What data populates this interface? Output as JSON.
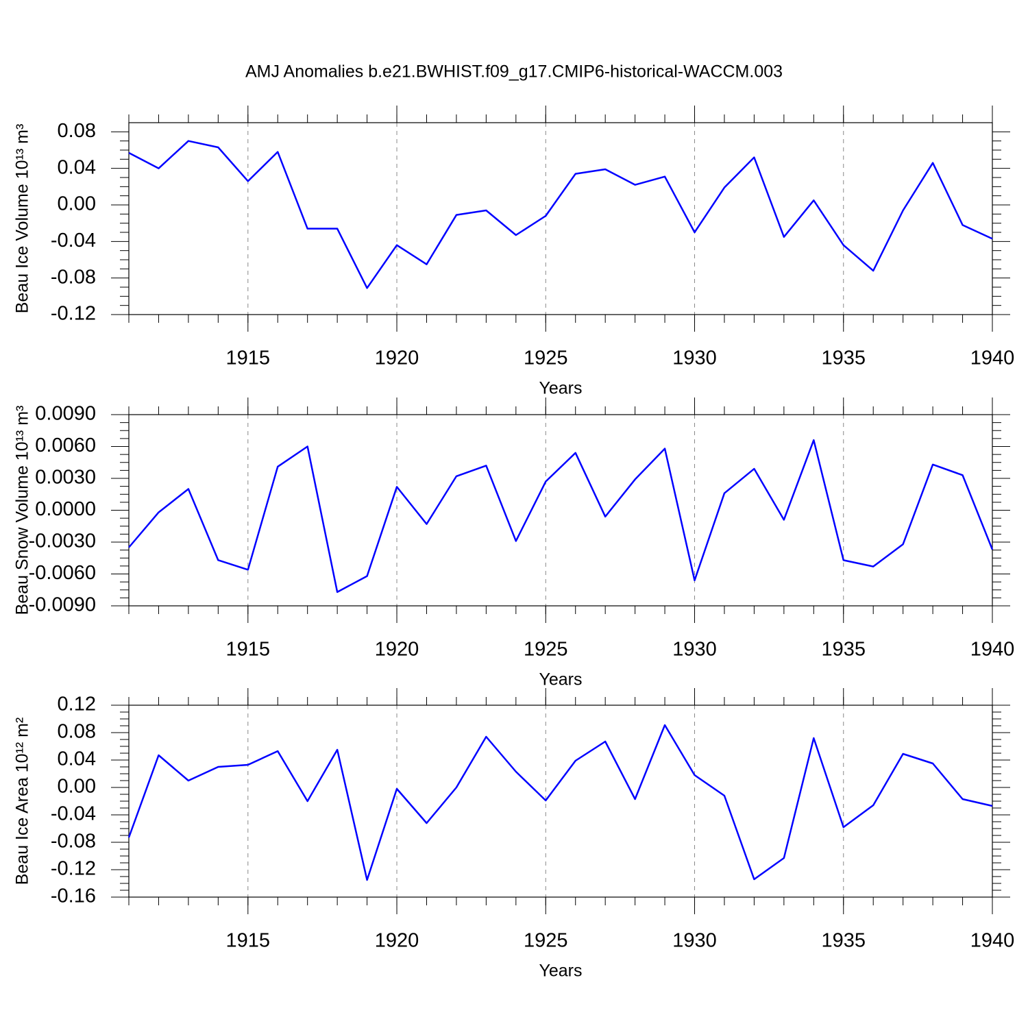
{
  "title": "AMJ Anomalies b.e21.BWHIST.f09_g17.CMIP6-historical-WACCM.003",
  "chart_data": [
    {
      "type": "line",
      "xlabel": "Years",
      "ylabel": "Beau Ice Volume 10¹³ m³",
      "x": [
        1911,
        1912,
        1913,
        1914,
        1915,
        1916,
        1917,
        1918,
        1919,
        1920,
        1921,
        1922,
        1923,
        1924,
        1925,
        1926,
        1927,
        1928,
        1929,
        1930,
        1931,
        1932,
        1933,
        1934,
        1935,
        1936,
        1937,
        1938,
        1939,
        1940
      ],
      "series": [
        {
          "color": "#0000ff",
          "values": [
            0.057,
            0.04,
            0.07,
            0.063,
            0.026,
            0.058,
            -0.026,
            -0.026,
            -0.091,
            -0.044,
            -0.065,
            -0.011,
            -0.006,
            -0.033,
            -0.012,
            0.034,
            0.039,
            0.022,
            0.031,
            -0.03,
            0.019,
            0.052,
            -0.035,
            0.005,
            -0.044,
            -0.072,
            -0.006,
            0.046,
            -0.022,
            -0.037
          ]
        }
      ],
      "xlim": [
        1911,
        1940
      ],
      "xticks": [
        1915,
        1920,
        1925,
        1930,
        1935,
        1940
      ],
      "ylim": [
        -0.12,
        0.09
      ],
      "yticks": [
        -0.12,
        -0.08,
        -0.04,
        {
          "value": 0,
          "label": "0.00"
        },
        0.04,
        0.08
      ],
      "xgrid": true
    },
    {
      "type": "line",
      "xlabel": "Years",
      "ylabel": "Beau Snow Volume 10¹³ m³",
      "x": [
        1911,
        1912,
        1913,
        1914,
        1915,
        1916,
        1917,
        1918,
        1919,
        1920,
        1921,
        1922,
        1923,
        1924,
        1925,
        1926,
        1927,
        1928,
        1929,
        1930,
        1931,
        1932,
        1933,
        1934,
        1935,
        1936,
        1937,
        1938,
        1939,
        1940
      ],
      "series": [
        {
          "color": "#0000ff",
          "values": [
            -0.0035,
            -0.0002,
            0.002,
            -0.0047,
            -0.0056,
            0.0041,
            0.006,
            -0.0077,
            -0.0062,
            0.0022,
            -0.0013,
            0.0032,
            0.0042,
            -0.0029,
            0.0027,
            0.0054,
            -0.0006,
            0.0029,
            0.0058,
            -0.0066,
            0.0016,
            0.0039,
            -0.0009,
            0.0066,
            -0.0047,
            -0.0053,
            -0.0032,
            0.0043,
            0.0033,
            -0.0037
          ]
        }
      ],
      "xlim": [
        1911,
        1940
      ],
      "xticks": [
        1915,
        1920,
        1925,
        1930,
        1935,
        1940
      ],
      "ylim": [
        -0.009,
        0.009
      ],
      "yticks": [
        {
          "value": -0.009,
          "label": "-0.0090"
        },
        {
          "value": -0.006,
          "label": "-0.0060"
        },
        {
          "value": -0.003,
          "label": "-0.0030"
        },
        {
          "value": 0,
          "label": "0.0000"
        },
        {
          "value": 0.003,
          "label": "0.0030"
        },
        {
          "value": 0.006,
          "label": "0.0060"
        },
        {
          "value": 0.009,
          "label": "0.0090"
        }
      ],
      "xgrid": true
    },
    {
      "type": "line",
      "xlabel": "Years",
      "ylabel": "Beau Ice Area 10¹² m²",
      "x": [
        1911,
        1912,
        1913,
        1914,
        1915,
        1916,
        1917,
        1918,
        1919,
        1920,
        1921,
        1922,
        1923,
        1924,
        1925,
        1926,
        1927,
        1928,
        1929,
        1930,
        1931,
        1932,
        1933,
        1934,
        1935,
        1936,
        1937,
        1938,
        1939,
        1940
      ],
      "series": [
        {
          "color": "#0000ff",
          "values": [
            -0.073,
            0.047,
            0.01,
            0.03,
            0.033,
            0.053,
            -0.02,
            0.055,
            -0.135,
            -0.002,
            -0.052,
            0.0,
            0.074,
            0.023,
            -0.019,
            0.039,
            0.067,
            -0.017,
            0.091,
            0.018,
            -0.012,
            -0.134,
            -0.103,
            0.072,
            -0.058,
            -0.026,
            0.049,
            0.035,
            -0.017,
            -0.027
          ]
        }
      ],
      "xlim": [
        1911,
        1940
      ],
      "xticks": [
        1915,
        1920,
        1925,
        1930,
        1935,
        1940
      ],
      "ylim": [
        -0.16,
        0.12
      ],
      "yticks": [
        -0.16,
        -0.12,
        -0.08,
        -0.04,
        {
          "value": 0,
          "label": "0.00"
        },
        0.04,
        0.08,
        0.12
      ],
      "xgrid": true
    }
  ]
}
